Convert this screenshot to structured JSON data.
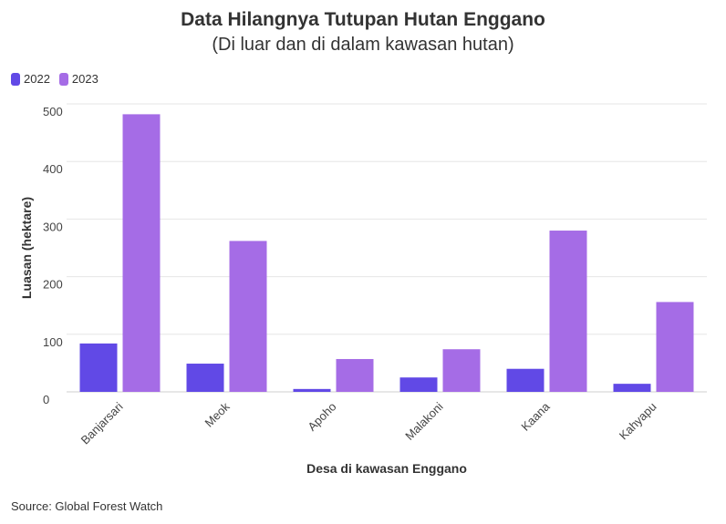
{
  "chart_data": {
    "type": "bar",
    "title": "Data Hilangnya Tutupan Hutan Enggano",
    "subtitle": "(Di luar dan di dalam kawasan hutan)",
    "xlabel": "Desa di kawasan Enggano",
    "ylabel": "Luasan (hektare)",
    "categories": [
      "Banjarsari",
      "Meok",
      "Apoho",
      "Malakoni",
      "Kaana",
      "Kahyapu"
    ],
    "series": [
      {
        "name": "2022",
        "color": "#6149e6",
        "values": [
          84,
          49,
          5,
          25,
          40,
          14
        ]
      },
      {
        "name": "2023",
        "color": "#a56ce6",
        "values": [
          482,
          262,
          57,
          74,
          280,
          156
        ]
      }
    ],
    "ylim": [
      0,
      500
    ],
    "yticks": [
      0,
      100,
      200,
      300,
      400,
      500
    ],
    "grid": true,
    "legend_position": "top-left"
  },
  "source": "Source: Global Forest Watch"
}
